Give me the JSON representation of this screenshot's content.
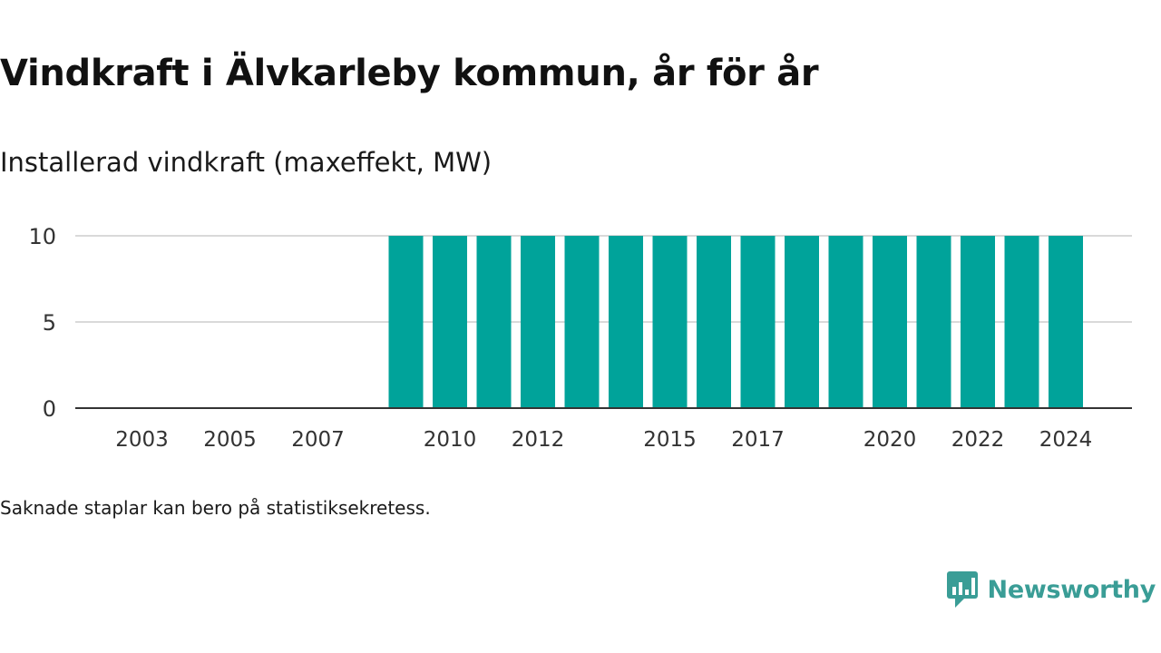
{
  "header": {
    "title": "Vindkraft i Älvkarleby kommun, år för år",
    "subtitle": "Installerad vindkraft (maxeffekt, MW)"
  },
  "footer": {
    "note": "Saknade staplar kan bero på statistiksekretess.",
    "brand": "Newsworthy",
    "brand_icon": "newsworthy-logo-icon"
  },
  "colors": {
    "bar": "#00a39a",
    "axis": "#333333",
    "grid": "#d9d9d9",
    "brand": "#3a9d96"
  },
  "chart_data": {
    "type": "bar",
    "title": "Vindkraft i Älvkarleby kommun, år för år",
    "subtitle": "Installerad vindkraft (maxeffekt, MW)",
    "xlabel": "",
    "ylabel": "",
    "ylim": [
      0,
      10
    ],
    "yticks": [
      0,
      5,
      10
    ],
    "grid": true,
    "legend": "none",
    "categories": [
      2002,
      2003,
      2004,
      2005,
      2006,
      2007,
      2008,
      2009,
      2010,
      2011,
      2012,
      2013,
      2014,
      2015,
      2016,
      2017,
      2018,
      2019,
      2020,
      2021,
      2022,
      2023,
      2024
    ],
    "values": [
      null,
      null,
      null,
      null,
      null,
      null,
      null,
      10,
      10,
      10,
      10,
      10,
      10,
      10,
      10,
      10,
      10,
      10,
      10,
      10,
      10,
      10,
      10
    ],
    "xtick_labels": [
      2003,
      2005,
      2007,
      2010,
      2012,
      2015,
      2017,
      2020,
      2022,
      2024
    ]
  }
}
